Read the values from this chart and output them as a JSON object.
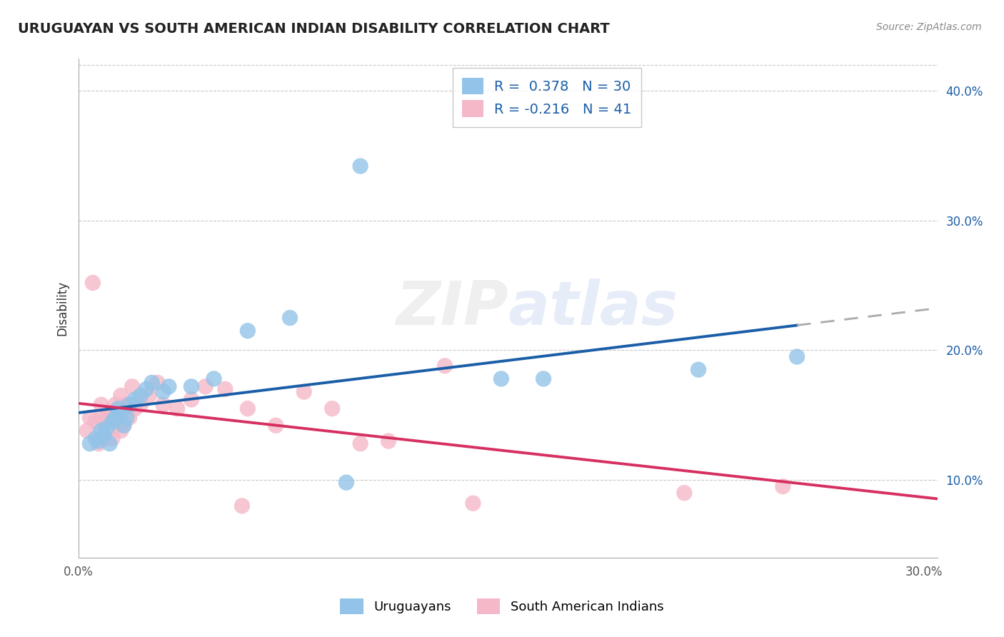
{
  "title": "URUGUAYAN VS SOUTH AMERICAN INDIAN DISABILITY CORRELATION CHART",
  "source": "Source: ZipAtlas.com",
  "ylabel": "Disability",
  "xlim": [
    0.0,
    0.305
  ],
  "ylim": [
    0.04,
    0.425
  ],
  "xtick_positions": [
    0.0,
    0.05,
    0.1,
    0.15,
    0.2,
    0.25,
    0.3
  ],
  "xtick_labels": [
    "0.0%",
    "",
    "",
    "",
    "",
    "",
    "30.0%"
  ],
  "ytick_positions": [
    0.1,
    0.2,
    0.3,
    0.4
  ],
  "ytick_labels": [
    "10.0%",
    "20.0%",
    "30.0%",
    "40.0%"
  ],
  "r_uruguayan": 0.378,
  "n_uruguayan": 30,
  "r_sa_indian": -0.216,
  "n_sa_indian": 41,
  "uruguayan_scatter_color": "#93C3E8",
  "sa_indian_scatter_color": "#F5B8C8",
  "uruguayan_line_color": "#1A5EA8",
  "sa_indian_line_color": "#D63060",
  "watermark": "ZIPatlas",
  "background_color": "#FFFFFF",
  "grid_color": "#C8C8C8",
  "uruguayan_x": [
    0.004,
    0.006,
    0.007,
    0.008,
    0.009,
    0.01,
    0.011,
    0.012,
    0.013,
    0.014,
    0.015,
    0.016,
    0.017,
    0.018,
    0.02,
    0.022,
    0.024,
    0.026,
    0.03,
    0.032,
    0.04,
    0.048,
    0.06,
    0.075,
    0.095,
    0.1,
    0.15,
    0.165,
    0.22,
    0.255
  ],
  "uruguayan_y": [
    0.128,
    0.132,
    0.13,
    0.138,
    0.135,
    0.14,
    0.128,
    0.145,
    0.148,
    0.155,
    0.152,
    0.142,
    0.148,
    0.158,
    0.162,
    0.165,
    0.17,
    0.175,
    0.168,
    0.172,
    0.172,
    0.178,
    0.215,
    0.225,
    0.098,
    0.342,
    0.178,
    0.178,
    0.185,
    0.195
  ],
  "sa_indian_x": [
    0.003,
    0.004,
    0.005,
    0.006,
    0.007,
    0.008,
    0.008,
    0.009,
    0.01,
    0.01,
    0.011,
    0.012,
    0.013,
    0.013,
    0.014,
    0.015,
    0.015,
    0.016,
    0.017,
    0.018,
    0.019,
    0.02,
    0.022,
    0.025,
    0.028,
    0.03,
    0.035,
    0.04,
    0.045,
    0.052,
    0.058,
    0.06,
    0.07,
    0.08,
    0.09,
    0.1,
    0.11,
    0.13,
    0.14,
    0.215,
    0.25
  ],
  "sa_indian_y": [
    0.138,
    0.148,
    0.252,
    0.145,
    0.128,
    0.148,
    0.158,
    0.145,
    0.132,
    0.148,
    0.15,
    0.132,
    0.148,
    0.158,
    0.142,
    0.165,
    0.138,
    0.142,
    0.158,
    0.148,
    0.172,
    0.155,
    0.158,
    0.165,
    0.175,
    0.158,
    0.155,
    0.162,
    0.172,
    0.17,
    0.08,
    0.155,
    0.142,
    0.168,
    0.155,
    0.128,
    0.13,
    0.188,
    0.082,
    0.09,
    0.095
  ],
  "bottom_legend_labels": [
    "Uruguayans",
    "South American Indians"
  ]
}
